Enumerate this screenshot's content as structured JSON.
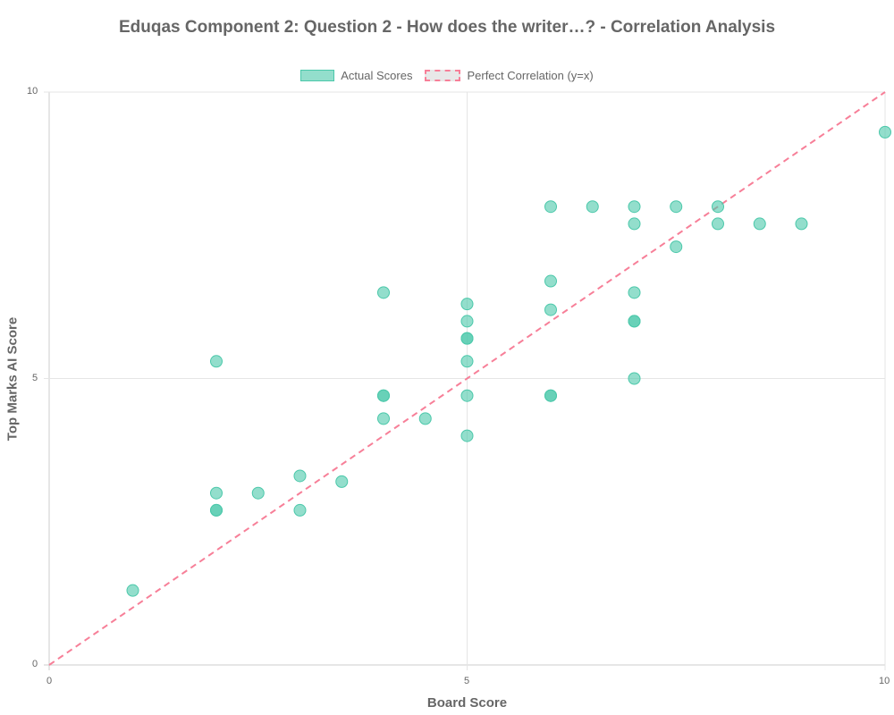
{
  "chart_data": {
    "type": "scatter",
    "title": "Eduqas Component 2: Question 2 - How does the writer…? - Correlation Analysis",
    "xlabel": "Board Score",
    "ylabel": "Top Marks AI Score",
    "xlim": [
      0,
      10
    ],
    "ylim": [
      0,
      10
    ],
    "x_ticks": [
      "0",
      "5",
      "10"
    ],
    "y_ticks": [
      "0",
      "5",
      "10"
    ],
    "grid": true,
    "legend_position": "top",
    "legend": [
      "Actual Scores",
      "Perfect Correlation (y=x)"
    ],
    "series": [
      {
        "name": "Actual Scores",
        "type": "scatter",
        "color": "#4bc8aa",
        "points": [
          [
            1.0,
            1.3
          ],
          [
            2.0,
            5.3
          ],
          [
            2.0,
            3.0
          ],
          [
            2.0,
            2.7
          ],
          [
            2.0,
            2.7
          ],
          [
            2.5,
            3.0
          ],
          [
            3.0,
            3.3
          ],
          [
            3.0,
            2.7
          ],
          [
            3.5,
            3.2
          ],
          [
            4.0,
            6.5
          ],
          [
            4.0,
            4.7
          ],
          [
            4.0,
            4.7
          ],
          [
            4.0,
            4.3
          ],
          [
            4.5,
            4.3
          ],
          [
            5.0,
            6.3
          ],
          [
            5.0,
            6.0
          ],
          [
            5.0,
            5.7
          ],
          [
            5.0,
            5.7
          ],
          [
            5.0,
            5.3
          ],
          [
            5.0,
            4.7
          ],
          [
            5.0,
            4.0
          ],
          [
            6.0,
            8.0
          ],
          [
            6.0,
            6.7
          ],
          [
            6.0,
            6.2
          ],
          [
            6.0,
            4.7
          ],
          [
            6.0,
            4.7
          ],
          [
            6.5,
            8.0
          ],
          [
            7.0,
            8.0
          ],
          [
            7.0,
            7.7
          ],
          [
            7.0,
            6.5
          ],
          [
            7.0,
            6.0
          ],
          [
            7.0,
            6.0
          ],
          [
            7.0,
            5.0
          ],
          [
            7.5,
            8.0
          ],
          [
            7.5,
            7.3
          ],
          [
            8.0,
            8.0
          ],
          [
            8.0,
            7.7
          ],
          [
            8.5,
            7.7
          ],
          [
            9.0,
            7.7
          ],
          [
            10.0,
            9.3
          ]
        ]
      },
      {
        "name": "Perfect Correlation (y=x)",
        "type": "line",
        "style": "dashed",
        "color": "#f77f98",
        "points": [
          [
            0,
            0
          ],
          [
            10,
            10
          ]
        ]
      }
    ]
  },
  "legend": {
    "actual_label": "Actual Scores",
    "perfect_label": "Perfect Correlation (y=x)"
  },
  "axes": {
    "x_title": "Board Score",
    "y_title": "Top Marks AI Score",
    "x_tick_0": "0",
    "x_tick_5": "5",
    "x_tick_10": "10",
    "y_tick_0": "0",
    "y_tick_5": "5",
    "y_tick_10": "10"
  }
}
